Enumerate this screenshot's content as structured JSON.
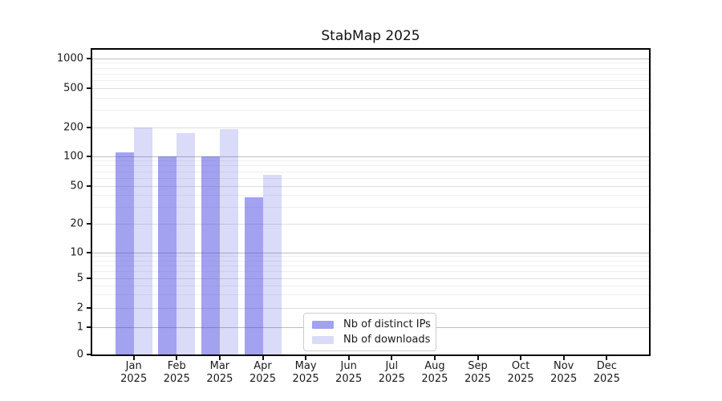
{
  "figure": {
    "background_color": "#ffffff",
    "spine_color": "#000000"
  },
  "chart_data": {
    "type": "bar",
    "title": "StabMap 2025",
    "xlabel": "",
    "ylabel": "",
    "yscale": "symlog",
    "ylim": [
      0,
      1300
    ],
    "grid": "horizontal",
    "legend_position": "lower-center-inside",
    "categories": [
      "Jan 2025",
      "Feb 2025",
      "Mar 2025",
      "Apr 2025",
      "May 2025",
      "Jun 2025",
      "Jul 2025",
      "Aug 2025",
      "Sep 2025",
      "Oct 2025",
      "Nov 2025",
      "Dec 2025"
    ],
    "series": [
      {
        "name": "Nb of distinct IPs",
        "color": "rgba(69,69,225,0.5)",
        "values": [
          110,
          99,
          100,
          38,
          0,
          0,
          0,
          0,
          0,
          0,
          0,
          0
        ]
      },
      {
        "name": "Nb of downloads",
        "color": "rgba(69,69,225,0.2)",
        "values": [
          197,
          174,
          192,
          65,
          0,
          0,
          0,
          0,
          0,
          0,
          0,
          0
        ]
      }
    ],
    "yticks": [
      0,
      1,
      2,
      5,
      10,
      20,
      50,
      100,
      200,
      500,
      1000
    ],
    "gridlines": {
      "major": [
        1,
        10,
        100,
        1000
      ],
      "sub": [
        2,
        5,
        20,
        50,
        200,
        500
      ],
      "minor": [
        3,
        4,
        6,
        7,
        8,
        9,
        30,
        40,
        60,
        70,
        80,
        90,
        300,
        400,
        600,
        700,
        800,
        900
      ],
      "major_color": "#bdbdbd",
      "sub_color": "#dedede",
      "minor_color": "#efefef"
    }
  }
}
